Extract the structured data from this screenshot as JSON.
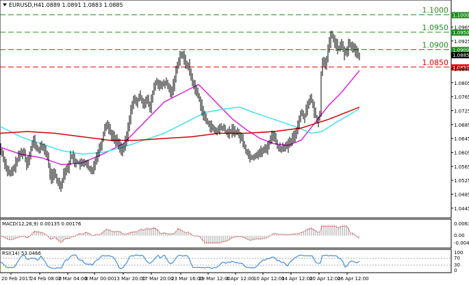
{
  "symbol": {
    "header": "EURUSD,H4",
    "ohlc": "1.0889 1.0891 1.0883 1.0885"
  },
  "colors": {
    "green": "#1e8c1e",
    "red": "#e00000",
    "magenta": "#e020e0",
    "cyan": "#40e0f0",
    "ma_red": "#d00000",
    "bars": "#000000",
    "rsi": "#1e78d7",
    "macd_signal": "#e03030",
    "macd_hist": "#b0b0b0",
    "last_price_bg": "#000000"
  },
  "levels": [
    {
      "label": "1.1000",
      "price": 1.1,
      "color": "green"
    },
    {
      "label": "1.0950",
      "price": 1.095,
      "color": "green"
    },
    {
      "label": "1.0900",
      "price": 1.09,
      "color": "green"
    },
    {
      "label": "1.0850",
      "price": 1.085,
      "color": "red"
    }
  ],
  "last_price": {
    "label": "1.0885",
    "price": 1.0885
  },
  "price_axis": {
    "ticks": [
      "1.0965",
      "1.0925",
      "1.0885",
      "1.0845",
      "1.0805",
      "1.0765",
      "1.0725",
      "1.0685",
      "1.0645",
      "1.0605",
      "1.0565",
      "1.0525",
      "1.0485",
      "1.0445"
    ]
  },
  "time_axis": {
    "labels": [
      "20 Feb 2017",
      "24 Feb 08:00",
      "2 Mar 04:00",
      "8 Mar 00:00",
      "13 Mar 20:00",
      "17 Mar 20:00",
      "23 Mar 16:00",
      "29 Mar 12:00",
      "4 Apr 12:00",
      "10 Apr 12:00",
      "14 Apr 12:00",
      "20 Apr 12:00",
      "26 Apr 12:00"
    ]
  },
  "macd": {
    "label": "MACD(12,26,9) 0.00135 0.00176",
    "ticks": [
      "0.00631",
      "0.00",
      "-0.00412"
    ]
  },
  "rsi": {
    "label": "RSI(14) 53.0466",
    "ticks": [
      "100",
      "70",
      "30",
      "0"
    ]
  },
  "chart_data": {
    "type": "line",
    "title": "EURUSD,H4",
    "y_range": [
      1.0425,
      1.1015
    ],
    "price_path": [
      [
        0,
        1.062
      ],
      [
        5,
        1.0595
      ],
      [
        10,
        1.056
      ],
      [
        15,
        1.054
      ],
      [
        20,
        1.0555
      ],
      [
        25,
        1.058
      ],
      [
        30,
        1.06
      ],
      [
        35,
        1.061
      ],
      [
        40,
        1.057
      ],
      [
        45,
        1.061
      ],
      [
        50,
        1.064
      ],
      [
        55,
        1.061
      ],
      [
        60,
        1.062
      ],
      [
        65,
        1.062
      ],
      [
        70,
        1.059
      ],
      [
        75,
        1.053
      ],
      [
        80,
        1.0545
      ],
      [
        85,
        1.052
      ],
      [
        90,
        1.051
      ],
      [
        95,
        1.0555
      ],
      [
        100,
        1.056
      ],
      [
        105,
        1.06
      ],
      [
        110,
        1.058
      ],
      [
        115,
        1.0575
      ],
      [
        120,
        1.057
      ],
      [
        125,
        1.058
      ],
      [
        130,
        1.056
      ],
      [
        135,
        1.0545
      ],
      [
        140,
        1.0585
      ],
      [
        145,
        1.061
      ],
      [
        150,
        1.064
      ],
      [
        155,
        1.069
      ],
      [
        160,
        1.0675
      ],
      [
        165,
        1.065
      ],
      [
        170,
        1.064
      ],
      [
        175,
        1.0625
      ],
      [
        180,
        1.061
      ],
      [
        185,
        1.064
      ],
      [
        190,
        1.07
      ],
      [
        195,
        1.076
      ],
      [
        200,
        1.0745
      ],
      [
        205,
        1.077
      ],
      [
        210,
        1.0745
      ],
      [
        215,
        1.076
      ],
      [
        220,
        1.073
      ],
      [
        225,
        1.079
      ],
      [
        230,
        1.081
      ],
      [
        235,
        1.079
      ],
      [
        240,
        1.0805
      ],
      [
        245,
        1.08
      ],
      [
        250,
        1.0775
      ],
      [
        255,
        1.0805
      ],
      [
        260,
        1.086
      ],
      [
        265,
        1.089
      ],
      [
        268,
        1.088
      ],
      [
        272,
        1.086
      ],
      [
        276,
        1.0855
      ],
      [
        280,
        1.082
      ],
      [
        285,
        1.079
      ],
      [
        290,
        1.077
      ],
      [
        295,
        1.0735
      ],
      [
        300,
        1.07
      ],
      [
        305,
        1.069
      ],
      [
        310,
        1.0675
      ],
      [
        315,
        1.0665
      ],
      [
        320,
        1.067
      ],
      [
        325,
        1.068
      ],
      [
        330,
        1.0665
      ],
      [
        335,
        1.066
      ],
      [
        340,
        1.067
      ],
      [
        345,
        1.0665
      ],
      [
        350,
        1.0655
      ],
      [
        355,
        1.064
      ],
      [
        360,
        1.061
      ],
      [
        365,
        1.0595
      ],
      [
        370,
        1.059
      ],
      [
        375,
        1.06
      ],
      [
        380,
        1.0605
      ],
      [
        385,
        1.061
      ],
      [
        390,
        1.0615
      ],
      [
        395,
        1.064
      ],
      [
        400,
        1.066
      ],
      [
        405,
        1.0625
      ],
      [
        410,
        1.0615
      ],
      [
        415,
        1.0625
      ],
      [
        420,
        1.062
      ],
      [
        425,
        1.0635
      ],
      [
        430,
        1.065
      ],
      [
        435,
        1.0675
      ],
      [
        440,
        1.072
      ],
      [
        445,
        1.0705
      ],
      [
        450,
        1.0745
      ],
      [
        455,
        1.076
      ],
      [
        460,
        1.072
      ],
      [
        465,
        1.069
      ],
      [
        468,
        1.072
      ],
      [
        470,
        1.083
      ],
      [
        473,
        1.088
      ],
      [
        476,
        1.0855
      ],
      [
        480,
        1.09
      ],
      [
        485,
        1.0945
      ],
      [
        490,
        1.092
      ],
      [
        495,
        1.09
      ],
      [
        500,
        1.0915
      ],
      [
        505,
        1.088
      ],
      [
        510,
        1.0915
      ],
      [
        515,
        1.091
      ],
      [
        520,
        1.0895
      ],
      [
        525,
        1.0885
      ]
    ],
    "series": [
      {
        "color": "magenta",
        "values": [
          [
            0,
            1.062
          ],
          [
            30,
            1.06
          ],
          [
            60,
            1.059
          ],
          [
            90,
            1.057
          ],
          [
            120,
            1.0575
          ],
          [
            150,
            1.06
          ],
          [
            180,
            1.063
          ],
          [
            210,
            1.069
          ],
          [
            240,
            1.075
          ],
          [
            270,
            1.078
          ],
          [
            290,
            1.08
          ],
          [
            310,
            1.076
          ],
          [
            340,
            1.07
          ],
          [
            360,
            1.067
          ],
          [
            380,
            1.0645
          ],
          [
            400,
            1.063
          ],
          [
            420,
            1.0625
          ],
          [
            440,
            1.064
          ],
          [
            460,
            1.069
          ],
          [
            480,
            1.074
          ],
          [
            500,
            1.078
          ],
          [
            525,
            1.084
          ]
        ]
      },
      {
        "color": "cyan",
        "values": [
          [
            0,
            1.068
          ],
          [
            30,
            1.065
          ],
          [
            60,
            1.063
          ],
          [
            90,
            1.061
          ],
          [
            120,
            1.06
          ],
          [
            150,
            1.0605
          ],
          [
            180,
            1.062
          ],
          [
            210,
            1.064
          ],
          [
            240,
            1.066
          ],
          [
            270,
            1.069
          ],
          [
            300,
            1.072
          ],
          [
            330,
            1.073
          ],
          [
            350,
            1.0735
          ],
          [
            370,
            1.072
          ],
          [
            400,
            1.07
          ],
          [
            430,
            1.068
          ],
          [
            455,
            1.066
          ],
          [
            470,
            1.0665
          ],
          [
            490,
            1.069
          ],
          [
            525,
            1.073
          ]
        ]
      },
      {
        "color": "ma_red",
        "values": [
          [
            0,
            1.066
          ],
          [
            40,
            1.0665
          ],
          [
            80,
            1.066
          ],
          [
            120,
            1.065
          ],
          [
            160,
            1.064
          ],
          [
            200,
            1.064
          ],
          [
            240,
            1.0645
          ],
          [
            280,
            1.065
          ],
          [
            320,
            1.066
          ],
          [
            360,
            1.066
          ],
          [
            400,
            1.0665
          ],
          [
            440,
            1.0675
          ],
          [
            480,
            1.07
          ],
          [
            525,
            1.0735
          ]
        ]
      }
    ]
  }
}
